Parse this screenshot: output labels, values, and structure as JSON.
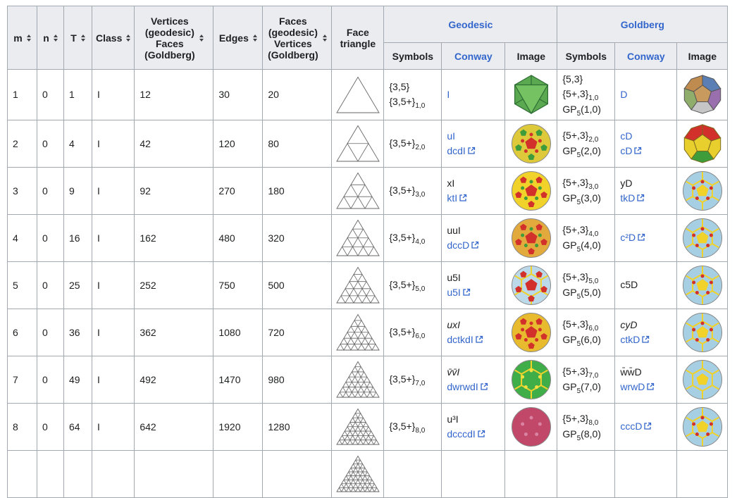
{
  "colors": {
    "border": "#a2a9b1",
    "header_bg": "#eaecf0",
    "link": "#3366cc",
    "text": "#202122"
  },
  "header": {
    "m": "m",
    "n": "n",
    "t": "T",
    "class": "Class",
    "vertices_lines": [
      "Vertices",
      "(geodesic)",
      "Faces",
      "(Goldberg)"
    ],
    "edges": "Edges",
    "faces_lines": [
      "Faces",
      "(geodesic)",
      "Vertices",
      "(Goldberg)"
    ],
    "face_triangle": "Face triangle",
    "geodesic": "Geodesic",
    "goldberg": "Goldberg",
    "symbols": "Symbols",
    "conway": "Conway",
    "image": "Image"
  },
  "rows": [
    {
      "m": "1",
      "n": "0",
      "T": "1",
      "cls": "I",
      "vertices": "12",
      "edges": "30",
      "faces": "20",
      "tri": 1,
      "geo_symbols": [
        {
          "base": "{3,5}",
          "sub": ""
        },
        {
          "base": "{3,5+}",
          "sub": "1,0"
        }
      ],
      "geo_conway": [
        {
          "text": "I",
          "link": true
        }
      ],
      "geo_image": {
        "kind": "icosahedron",
        "face": "#5aa84f",
        "face2": "#74c262",
        "edge": "#2f6e35"
      },
      "gold_symbols": [
        {
          "base": "{5,3}",
          "sub": ""
        },
        {
          "base": "{5+,3}",
          "sub": "1,0"
        },
        {
          "base": "GP",
          "sub": "5",
          "after": "(1,0)"
        }
      ],
      "gold_conway": [
        {
          "text": "D",
          "link": true
        }
      ],
      "gold_image": {
        "kind": "dodecahedron",
        "faces": [
          "#c08b4f",
          "#8fae6b",
          "#c6c6c6",
          "#9a6fae",
          "#5b7fb4"
        ],
        "center": "#c89a5e",
        "edge": "#555555"
      }
    },
    {
      "m": "2",
      "n": "0",
      "T": "4",
      "cls": "I",
      "vertices": "42",
      "edges": "120",
      "faces": "80",
      "tri": 2,
      "geo_symbols": [
        {
          "base": "{3,5+}",
          "sub": "2,0"
        }
      ],
      "geo_conway": [
        {
          "text": "uI",
          "link": true
        },
        {
          "text": "dcdI",
          "link": true,
          "ext": true
        }
      ],
      "geo_image": {
        "kind": "ball",
        "base": "#ddc93a",
        "pent": "#d2302a",
        "ring": "#3f9c3a",
        "dots": "#d2302a"
      },
      "gold_symbols": [
        {
          "base": "{5+,3}",
          "sub": "2,0"
        },
        {
          "base": "GP",
          "sub": "5",
          "after": "(2,0)"
        }
      ],
      "gold_conway": [
        {
          "text": "cD",
          "link": true
        },
        {
          "text": "cD",
          "link": true,
          "ext": true
        }
      ],
      "gold_image": {
        "kind": "dodecahedron",
        "faces": [
          "#d2302a",
          "#e8cf2e",
          "#3f9c3a",
          "#e8cf2e",
          "#d2302a"
        ],
        "center": "#e8cf2e",
        "edge": "#7a6a1e"
      }
    },
    {
      "m": "3",
      "n": "0",
      "T": "9",
      "cls": "I",
      "vertices": "92",
      "edges": "270",
      "faces": "180",
      "tri": 3,
      "geo_symbols": [
        {
          "base": "{3,5+}",
          "sub": "3,0"
        }
      ],
      "geo_conway": [
        {
          "text": "xI"
        },
        {
          "text": "ktI",
          "link": true,
          "ext": true
        }
      ],
      "geo_image": {
        "kind": "ball",
        "base": "#f0d22b",
        "pent": "#d2302a",
        "ring": "#d2302a",
        "dots": "#3f9c3a"
      },
      "gold_symbols": [
        {
          "base": "{5+,3}",
          "sub": "3,0"
        },
        {
          "base": "GP",
          "sub": "5",
          "after": "(3,0)"
        }
      ],
      "gold_conway": [
        {
          "text": "yD"
        },
        {
          "text": "tkD",
          "link": true,
          "ext": true
        }
      ],
      "gold_image": {
        "kind": "ball",
        "base": "#a6cfe3",
        "lines": "#f0d22b",
        "pent": "#f0d22b",
        "dots": "#d2302a"
      }
    },
    {
      "m": "4",
      "n": "0",
      "T": "16",
      "cls": "I",
      "vertices": "162",
      "edges": "480",
      "faces": "320",
      "tri": 4,
      "geo_symbols": [
        {
          "base": "{3,5+}",
          "sub": "4,0"
        }
      ],
      "geo_conway": [
        {
          "text": "uuI"
        },
        {
          "text": "dccD",
          "link": true,
          "ext": true
        }
      ],
      "geo_image": {
        "kind": "ball",
        "base": "#e2a93c",
        "pent": "#d2302a",
        "ring": "#d2302a",
        "dots": "#3f9c3a"
      },
      "gold_symbols": [
        {
          "base": "{5+,3}",
          "sub": "4,0"
        },
        {
          "base": "GP",
          "sub": "5",
          "after": "(4,0)"
        }
      ],
      "gold_conway": [
        {
          "text": "c²D",
          "link": true,
          "ext": true
        }
      ],
      "gold_image": {
        "kind": "ball",
        "base": "#a6cfe3",
        "lines": "#f0d22b",
        "pent": "#f0d22b",
        "dots": "#d2302a"
      }
    },
    {
      "m": "5",
      "n": "0",
      "T": "25",
      "cls": "I",
      "vertices": "252",
      "edges": "750",
      "faces": "500",
      "tri": 5,
      "geo_symbols": [
        {
          "base": "{3,5+}",
          "sub": "5,0"
        }
      ],
      "geo_conway": [
        {
          "text": "u5I"
        },
        {
          "text": "u5I",
          "link": true,
          "ext": true
        }
      ],
      "geo_image": {
        "kind": "ball",
        "base": "#bcd9ea",
        "lines": "#f0d22b",
        "pent": "#d2302a",
        "ring": "#d2302a"
      },
      "gold_symbols": [
        {
          "base": "{5+,3}",
          "sub": "5,0"
        },
        {
          "base": "GP",
          "sub": "5",
          "after": "(5,0)"
        }
      ],
      "gold_conway": [
        {
          "text": "c5D"
        }
      ],
      "gold_image": {
        "kind": "ball",
        "base": "#a6cfe3",
        "lines": "#f0d22b",
        "pent": "#f0d22b",
        "dots": "#d2302a"
      }
    },
    {
      "m": "6",
      "n": "0",
      "T": "36",
      "cls": "I",
      "vertices": "362",
      "edges": "1080",
      "faces": "720",
      "tri": 6,
      "geo_symbols": [
        {
          "base": "{3,5+}",
          "sub": "6,0"
        }
      ],
      "geo_conway": [
        {
          "text": "uxI",
          "italic": true
        },
        {
          "text": "dctkdI",
          "link": true,
          "ext": true
        }
      ],
      "geo_image": {
        "kind": "ball",
        "base": "#e8bb2f",
        "pent": "#d2302a",
        "ring": "#d2302a",
        "dots": "#d2302a"
      },
      "gold_symbols": [
        {
          "base": "{5+,3}",
          "sub": "6,0"
        },
        {
          "base": "GP",
          "sub": "5",
          "after": "(6,0)"
        }
      ],
      "gold_conway": [
        {
          "text": "cyD",
          "italic": true
        },
        {
          "text": "ctkD",
          "link": true,
          "ext": true
        }
      ],
      "gold_image": {
        "kind": "ball",
        "base": "#a6cfe3",
        "lines": "#f0d22b",
        "pent": "#f0d22b",
        "dots": "#d2302a"
      }
    },
    {
      "m": "7",
      "n": "0",
      "T": "49",
      "cls": "I",
      "vertices": "492",
      "edges": "1470",
      "faces": "980",
      "tri": 7,
      "geo_symbols": [
        {
          "base": "{3,5+}",
          "sub": "7,0"
        }
      ],
      "geo_conway": [
        {
          "text": "v̄v̄I",
          "italic": true
        },
        {
          "text": "dwrwdI",
          "link": true,
          "ext": true
        }
      ],
      "geo_image": {
        "kind": "ball",
        "base": "#3fae49",
        "lines": "#f0d22b",
        "dots": "#f0e040"
      },
      "gold_symbols": [
        {
          "base": "{5+,3}",
          "sub": "7,0"
        },
        {
          "base": "GP",
          "sub": "5",
          "after": "(7,0)"
        }
      ],
      "gold_conway": [
        {
          "text": "w̄w̄D"
        },
        {
          "text": "wrwD",
          "link": true,
          "ext": true
        }
      ],
      "gold_image": {
        "kind": "ball",
        "base": "#a6cfe3",
        "lines": "#f0d22b",
        "pent": "#f0d22b"
      }
    },
    {
      "m": "8",
      "n": "0",
      "T": "64",
      "cls": "I",
      "vertices": "642",
      "edges": "1920",
      "faces": "1280",
      "tri": 8,
      "geo_symbols": [
        {
          "base": "{3,5+}",
          "sub": "8,0"
        }
      ],
      "geo_conway": [
        {
          "text": "u³I"
        },
        {
          "text": "dcccdI",
          "link": true,
          "ext": true
        }
      ],
      "geo_image": {
        "kind": "ball",
        "base": "#c2486a",
        "dots": "#d884a2"
      },
      "gold_symbols": [
        {
          "base": "{5+,3}",
          "sub": "8,0"
        },
        {
          "base": "GP",
          "sub": "5",
          "after": "(8,0)"
        }
      ],
      "gold_conway": [
        {
          "text": "cccD",
          "link": true,
          "ext": true
        }
      ],
      "gold_image": {
        "kind": "ball",
        "base": "#a6cfe3",
        "lines": "#f0d22b",
        "pent": "#f0d22b",
        "dots": "#d2302a"
      }
    }
  ],
  "partial_row": {
    "tri": 9
  }
}
